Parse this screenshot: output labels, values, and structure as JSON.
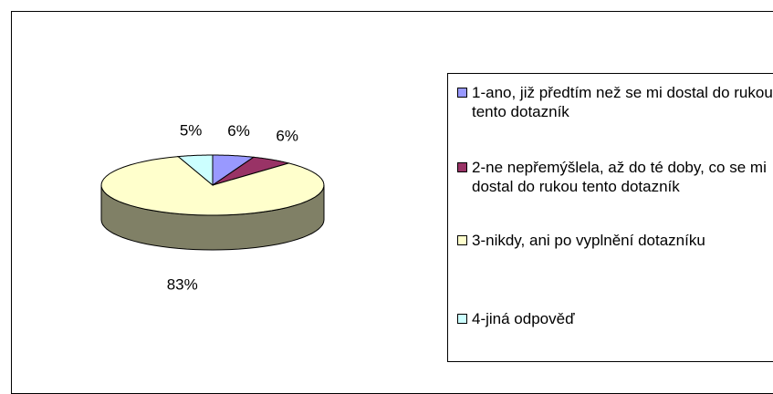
{
  "chart_data": {
    "type": "pie",
    "three_d": true,
    "categories": [
      "1-ano, již předtím než se mi dostal do rukou tento dotazník",
      "2-ne nepřemýšlela, až do té doby, co se mi dostal do rukou tento dotazník",
      "3-nikdy, ani po vyplnění dotazníku",
      "4-jiná odpověď"
    ],
    "values": [
      6,
      6,
      83,
      5
    ],
    "value_labels": [
      "6%",
      "6%",
      "83%",
      "5%"
    ],
    "colors": [
      "#9999ff",
      "#993366",
      "#ffffcc",
      "#ccffff"
    ],
    "legend": "right"
  }
}
